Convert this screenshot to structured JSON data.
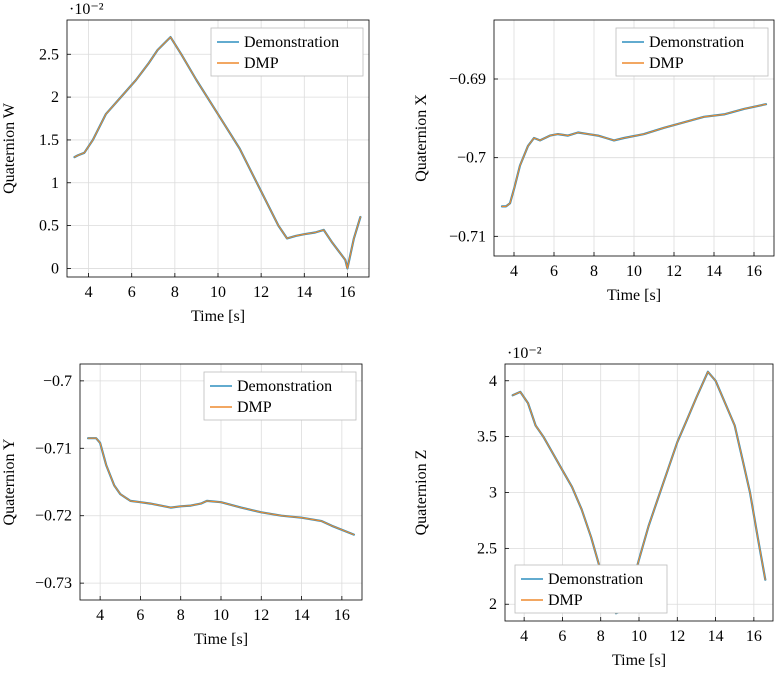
{
  "colors": {
    "demonstration": "#2f8fbf",
    "dmp": "#ee8a2e"
  },
  "chart_data": [
    {
      "type": "line",
      "ylabel": "Quaternion W",
      "xlabel": "Time [s]",
      "exponent": "·10⁻²",
      "xlim": [
        3.0,
        17.0
      ],
      "ylim": [
        -0.1,
        2.9
      ],
      "xticks": [
        4,
        6,
        8,
        10,
        12,
        14,
        16
      ],
      "xtick_labels": [
        "4",
        "6",
        "8",
        "10",
        "12",
        "14",
        "16"
      ],
      "yticks": [
        0,
        0.5,
        1,
        1.5,
        2,
        2.5
      ],
      "ytick_labels": [
        "0",
        "0.5",
        "1",
        "1.5",
        "2",
        "2.5"
      ],
      "legend_position": "top-right",
      "grid": true,
      "series": [
        {
          "name": "Demonstration",
          "x": [
            3.35,
            3.5,
            3.8,
            4.2,
            4.8,
            5.5,
            6.2,
            6.8,
            7.2,
            7.6,
            7.8,
            8.3,
            9.0,
            10.0,
            11.0,
            12.0,
            12.8,
            13.2,
            13.6,
            14.0,
            14.5,
            14.9,
            15.3,
            15.6,
            15.9,
            16.0,
            16.3,
            16.6
          ],
          "y": [
            1.3,
            1.32,
            1.35,
            1.5,
            1.8,
            2.0,
            2.2,
            2.4,
            2.55,
            2.65,
            2.7,
            2.5,
            2.2,
            1.8,
            1.4,
            0.9,
            0.5,
            0.35,
            0.38,
            0.4,
            0.42,
            0.45,
            0.3,
            0.2,
            0.1,
            0.0,
            0.35,
            0.6
          ]
        },
        {
          "name": "DMP",
          "x": [
            3.35,
            3.5,
            3.8,
            4.2,
            4.8,
            5.5,
            6.2,
            6.8,
            7.2,
            7.6,
            7.8,
            8.3,
            9.0,
            10.0,
            11.0,
            12.0,
            12.8,
            13.2,
            13.6,
            14.0,
            14.5,
            14.9,
            15.3,
            15.6,
            15.9,
            16.0,
            16.3,
            16.6
          ],
          "y": [
            1.3,
            1.32,
            1.35,
            1.5,
            1.8,
            2.0,
            2.2,
            2.4,
            2.55,
            2.65,
            2.7,
            2.5,
            2.2,
            1.8,
            1.4,
            0.9,
            0.5,
            0.35,
            0.38,
            0.4,
            0.42,
            0.45,
            0.3,
            0.2,
            0.1,
            0.0,
            0.35,
            0.6
          ]
        }
      ]
    },
    {
      "type": "line",
      "ylabel": "Quaternion X",
      "xlabel": "Time [s]",
      "exponent": "",
      "xlim": [
        3.0,
        17.0
      ],
      "ylim": [
        -0.7125,
        -0.6825
      ],
      "xticks": [
        4,
        6,
        8,
        10,
        12,
        14,
        16
      ],
      "xtick_labels": [
        "4",
        "6",
        "8",
        "10",
        "12",
        "14",
        "16"
      ],
      "yticks": [
        -0.71,
        -0.7,
        -0.69
      ],
      "ytick_labels": [
        "−0.71",
        "−0.7",
        "−0.69"
      ],
      "legend_position": "top-right",
      "grid": true,
      "series": [
        {
          "name": "Demonstration",
          "x": [
            3.4,
            3.6,
            3.8,
            4.0,
            4.3,
            4.7,
            5.0,
            5.3,
            5.8,
            6.2,
            6.7,
            7.2,
            7.7,
            8.2,
            8.6,
            9.0,
            9.5,
            10.5,
            11.5,
            12.5,
            13.5,
            14.5,
            15.5,
            16.6
          ],
          "y": [
            -0.7062,
            -0.7062,
            -0.7058,
            -0.704,
            -0.701,
            -0.6985,
            -0.6975,
            -0.6978,
            -0.6972,
            -0.697,
            -0.6972,
            -0.6968,
            -0.697,
            -0.6972,
            -0.6975,
            -0.6978,
            -0.6975,
            -0.697,
            -0.6962,
            -0.6955,
            -0.6948,
            -0.6945,
            -0.6938,
            -0.6932
          ]
        },
        {
          "name": "DMP",
          "x": [
            3.4,
            3.6,
            3.8,
            4.0,
            4.3,
            4.7,
            5.0,
            5.3,
            5.8,
            6.2,
            6.7,
            7.2,
            7.7,
            8.2,
            8.6,
            9.0,
            9.5,
            10.5,
            11.5,
            12.5,
            13.5,
            14.5,
            15.5,
            16.6
          ],
          "y": [
            -0.7062,
            -0.7062,
            -0.7058,
            -0.704,
            -0.701,
            -0.6985,
            -0.6975,
            -0.6978,
            -0.6972,
            -0.697,
            -0.6972,
            -0.6968,
            -0.697,
            -0.6972,
            -0.6975,
            -0.6978,
            -0.6975,
            -0.697,
            -0.6962,
            -0.6955,
            -0.6948,
            -0.6945,
            -0.6938,
            -0.6932
          ]
        }
      ]
    },
    {
      "type": "line",
      "ylabel": "Quaternion Y",
      "xlabel": "Time [s]",
      "exponent": "",
      "xlim": [
        3.0,
        17.0
      ],
      "ylim": [
        -0.7325,
        -0.6975
      ],
      "xticks": [
        4,
        6,
        8,
        10,
        12,
        14,
        16
      ],
      "xtick_labels": [
        "4",
        "6",
        "8",
        "10",
        "12",
        "14",
        "16"
      ],
      "yticks": [
        -0.73,
        -0.72,
        -0.71,
        -0.7
      ],
      "ytick_labels": [
        "−0.73",
        "−0.72",
        "−0.71",
        "−0.7"
      ],
      "legend_position": "top-right",
      "grid": true,
      "series": [
        {
          "name": "Demonstration",
          "x": [
            3.4,
            3.8,
            4.0,
            4.3,
            4.7,
            5.0,
            5.5,
            6.0,
            6.5,
            7.0,
            7.5,
            8.0,
            8.5,
            9.0,
            9.3,
            10.0,
            11.0,
            12.0,
            13.0,
            14.0,
            15.0,
            15.5,
            16.6
          ],
          "y": [
            -0.7085,
            -0.7085,
            -0.7092,
            -0.7125,
            -0.7155,
            -0.7168,
            -0.7178,
            -0.718,
            -0.7182,
            -0.7185,
            -0.7188,
            -0.7186,
            -0.7185,
            -0.7182,
            -0.7178,
            -0.718,
            -0.7188,
            -0.7195,
            -0.72,
            -0.7203,
            -0.7208,
            -0.7215,
            -0.7228
          ]
        },
        {
          "name": "DMP",
          "x": [
            3.4,
            3.8,
            4.0,
            4.3,
            4.7,
            5.0,
            5.5,
            6.0,
            6.5,
            7.0,
            7.5,
            8.0,
            8.5,
            9.0,
            9.3,
            10.0,
            11.0,
            12.0,
            13.0,
            14.0,
            15.0,
            15.5,
            16.6
          ],
          "y": [
            -0.7085,
            -0.7085,
            -0.7092,
            -0.7125,
            -0.7155,
            -0.7168,
            -0.7178,
            -0.718,
            -0.7182,
            -0.7185,
            -0.7188,
            -0.7186,
            -0.7185,
            -0.7182,
            -0.7178,
            -0.718,
            -0.7188,
            -0.7195,
            -0.72,
            -0.7203,
            -0.7208,
            -0.7215,
            -0.7228
          ]
        }
      ]
    },
    {
      "type": "line",
      "ylabel": "Quaternion Z",
      "xlabel": "Time [s]",
      "exponent": "·10⁻²",
      "xlim": [
        3.0,
        17.0
      ],
      "ylim": [
        1.85,
        4.15
      ],
      "xticks": [
        4,
        6,
        8,
        10,
        12,
        14,
        16
      ],
      "xtick_labels": [
        "4",
        "6",
        "8",
        "10",
        "12",
        "14",
        "16"
      ],
      "yticks": [
        2,
        2.5,
        3,
        3.5,
        4
      ],
      "ytick_labels": [
        "2",
        "2.5",
        "3",
        "3.5",
        "4"
      ],
      "legend_position": "bottom-left",
      "grid": true,
      "series": [
        {
          "name": "Demonstration",
          "x": [
            3.4,
            3.8,
            4.2,
            4.6,
            5.0,
            5.5,
            6.0,
            6.5,
            7.0,
            7.5,
            8.0,
            8.4,
            8.8,
            9.2,
            9.6,
            10.0,
            10.5,
            11.0,
            11.5,
            12.0,
            12.5,
            13.0,
            13.6,
            14.0,
            14.5,
            15.0,
            15.4,
            15.8,
            16.2,
            16.6
          ],
          "y": [
            3.87,
            3.9,
            3.8,
            3.6,
            3.5,
            3.35,
            3.2,
            3.05,
            2.85,
            2.6,
            2.3,
            2.05,
            1.92,
            1.95,
            2.15,
            2.4,
            2.7,
            2.95,
            3.2,
            3.45,
            3.65,
            3.85,
            4.08,
            4.0,
            3.8,
            3.6,
            3.3,
            3.0,
            2.6,
            2.22
          ]
        },
        {
          "name": "DMP",
          "x": [
            3.4,
            3.8,
            4.2,
            4.6,
            5.0,
            5.5,
            6.0,
            6.5,
            7.0,
            7.5,
            8.0,
            8.4,
            8.8,
            9.2,
            9.6,
            10.0,
            10.5,
            11.0,
            11.5,
            12.0,
            12.5,
            13.0,
            13.6,
            14.0,
            14.5,
            15.0,
            15.4,
            15.8,
            16.2,
            16.6
          ],
          "y": [
            3.87,
            3.9,
            3.8,
            3.6,
            3.5,
            3.35,
            3.2,
            3.05,
            2.85,
            2.6,
            2.3,
            2.05,
            1.92,
            1.95,
            2.15,
            2.4,
            2.7,
            2.95,
            3.2,
            3.45,
            3.65,
            3.85,
            4.08,
            4.0,
            3.8,
            3.6,
            3.3,
            3.0,
            2.6,
            2.22
          ]
        }
      ]
    }
  ]
}
